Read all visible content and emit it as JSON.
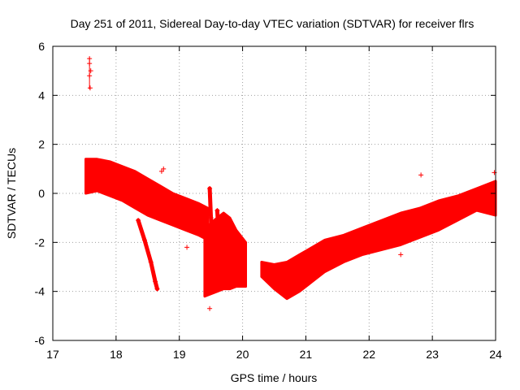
{
  "chart_data": {
    "type": "scatter",
    "title": "Day 251 of 2011, Sidereal Day-to-day VTEC variation (SDTVAR) for receiver flrs",
    "xlabel": "GPS time / hours",
    "ylabel": "SDTVAR / TECUs",
    "xlim": [
      17,
      24
    ],
    "ylim": [
      -6,
      6
    ],
    "xticks": [
      "17",
      "18",
      "19",
      "20",
      "21",
      "22",
      "23",
      "24"
    ],
    "yticks": [
      "-6",
      "-4",
      "-2",
      "0",
      "2",
      "4",
      "6"
    ],
    "grid": true,
    "series_color": "#ff0000",
    "marker": "+",
    "bands": [
      {
        "name": "segment-a",
        "x": [
          17.52,
          17.7,
          17.9,
          18.1,
          18.3,
          18.5,
          18.7,
          18.9,
          19.1,
          19.3,
          19.45
        ],
        "upper": [
          1.4,
          1.4,
          1.3,
          1.1,
          0.9,
          0.6,
          0.3,
          0.0,
          -0.2,
          -0.4,
          -0.6
        ],
        "lower": [
          0.0,
          0.1,
          -0.1,
          -0.3,
          -0.6,
          -0.9,
          -1.1,
          -1.3,
          -1.5,
          -1.7,
          -1.9
        ]
      },
      {
        "name": "segment-b",
        "x": [
          19.4,
          19.5,
          19.6,
          19.7,
          19.8,
          19.9,
          20.05
        ],
        "upper": [
          -1.5,
          -1.2,
          -1.0,
          -0.8,
          -1.0,
          -1.5,
          -2.0
        ],
        "lower": [
          -4.2,
          -4.1,
          -4.0,
          -3.9,
          -3.9,
          -3.8,
          -3.8
        ]
      },
      {
        "name": "segment-c",
        "x": [
          20.3,
          20.5,
          20.7,
          20.9,
          21.1,
          21.3,
          21.6,
          21.9,
          22.2,
          22.5,
          22.8,
          23.1,
          23.4,
          23.7,
          24.0
        ],
        "upper": [
          -2.8,
          -2.9,
          -2.8,
          -2.5,
          -2.2,
          -1.9,
          -1.7,
          -1.4,
          -1.1,
          -0.8,
          -0.6,
          -0.3,
          -0.1,
          0.2,
          0.5
        ],
        "lower": [
          -3.4,
          -3.9,
          -4.3,
          -4.0,
          -3.6,
          -3.2,
          -2.8,
          -2.5,
          -2.3,
          -2.1,
          -1.8,
          -1.5,
          -1.1,
          -0.7,
          -0.9
        ]
      }
    ],
    "streaks": [
      {
        "name": "diagonal-streak-1",
        "points": [
          [
            18.35,
            -1.1
          ],
          [
            18.45,
            -1.9
          ],
          [
            18.55,
            -2.8
          ],
          [
            18.62,
            -3.6
          ],
          [
            18.65,
            -3.9
          ]
        ]
      },
      {
        "name": "vertical-streak-1",
        "points": [
          [
            19.48,
            0.2
          ],
          [
            19.5,
            -1.0
          ],
          [
            19.52,
            -2.4
          ],
          [
            19.55,
            -3.4
          ]
        ]
      },
      {
        "name": "vertical-streak-2",
        "points": [
          [
            19.6,
            -0.7
          ],
          [
            19.62,
            -1.6
          ],
          [
            19.65,
            -2.5
          ]
        ]
      }
    ],
    "outliers": [
      {
        "x": 17.58,
        "y": 5.5
      },
      {
        "x": 17.58,
        "y": 5.3
      },
      {
        "x": 17.6,
        "y": 5.0
      },
      {
        "x": 17.58,
        "y": 4.8
      },
      {
        "x": 17.59,
        "y": 4.3
      },
      {
        "x": 19.12,
        "y": -2.2
      },
      {
        "x": 19.48,
        "y": -4.7
      },
      {
        "x": 22.82,
        "y": 0.75
      },
      {
        "x": 22.5,
        "y": -2.5
      },
      {
        "x": 23.98,
        "y": 0.85
      },
      {
        "x": 18.72,
        "y": 0.9
      },
      {
        "x": 18.75,
        "y": 1.0
      }
    ],
    "error_bar": {
      "x": 17.58,
      "y_low": 4.25,
      "y_high": 5.55
    }
  }
}
